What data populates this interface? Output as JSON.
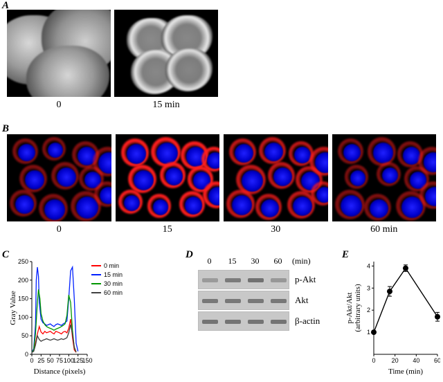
{
  "panelA": {
    "label": "A",
    "images": [
      {
        "caption": "0"
      },
      {
        "caption": "15 min"
      }
    ]
  },
  "panelB": {
    "label": "B",
    "images": [
      {
        "caption": "0",
        "red_intensity": 0.35
      },
      {
        "caption": "15",
        "red_intensity": 1.0
      },
      {
        "caption": "30",
        "red_intensity": 0.7
      },
      {
        "caption": "60 min",
        "red_intensity": 0.35
      }
    ],
    "nucleus_color": "#1818ff",
    "membrane_color": "#ff1e1e"
  },
  "panelC": {
    "label": "C",
    "type": "line",
    "xlabel": "Distance (pixels)",
    "ylabel": "Gray Value",
    "xlim": [
      0,
      150
    ],
    "ylim": [
      0,
      250
    ],
    "xticks": [
      0,
      25,
      50,
      75,
      100,
      125,
      150
    ],
    "yticks": [
      0,
      50,
      100,
      150,
      200,
      250
    ],
    "series": [
      {
        "name": "0 min",
        "color": "#ff0000",
        "x": [
          0,
          5,
          10,
          15,
          20,
          25,
          30,
          35,
          40,
          45,
          50,
          55,
          60,
          65,
          70,
          75,
          80,
          85,
          90,
          95,
          100,
          105,
          110,
          115,
          120
        ],
        "y": [
          5,
          10,
          30,
          55,
          75,
          60,
          55,
          62,
          58,
          60,
          62,
          58,
          55,
          62,
          60,
          58,
          55,
          60,
          62,
          58,
          70,
          95,
          45,
          12,
          5
        ]
      },
      {
        "name": "15 min",
        "color": "#0020ff",
        "x": [
          0,
          5,
          10,
          12,
          15,
          18,
          20,
          25,
          30,
          35,
          40,
          45,
          50,
          55,
          60,
          65,
          70,
          75,
          80,
          85,
          90,
          95,
          100,
          105,
          110,
          115,
          120,
          125
        ],
        "y": [
          5,
          15,
          80,
          200,
          235,
          210,
          140,
          95,
          85,
          82,
          78,
          80,
          82,
          78,
          75,
          80,
          82,
          80,
          78,
          82,
          85,
          90,
          150,
          225,
          235,
          150,
          30,
          8
        ]
      },
      {
        "name": "30 min",
        "color": "#009600",
        "x": [
          0,
          5,
          10,
          15,
          18,
          22,
          25,
          30,
          35,
          40,
          45,
          50,
          55,
          60,
          65,
          70,
          75,
          80,
          85,
          90,
          95,
          100,
          105,
          110,
          115,
          120
        ],
        "y": [
          5,
          12,
          55,
          140,
          175,
          150,
          110,
          90,
          80,
          75,
          72,
          70,
          68,
          65,
          68,
          70,
          72,
          75,
          78,
          82,
          105,
          160,
          140,
          65,
          18,
          6
        ]
      },
      {
        "name": "60 min",
        "color": "#404040",
        "x": [
          0,
          5,
          10,
          15,
          20,
          25,
          30,
          35,
          40,
          45,
          50,
          55,
          60,
          65,
          70,
          75,
          80,
          85,
          90,
          95,
          100,
          105,
          110,
          115,
          120
        ],
        "y": [
          5,
          8,
          25,
          50,
          40,
          35,
          38,
          40,
          42,
          40,
          38,
          40,
          42,
          40,
          38,
          40,
          42,
          40,
          42,
          45,
          58,
          80,
          55,
          20,
          6
        ]
      }
    ],
    "background_color": "#ffffff",
    "axis_color": "#000000",
    "label_fontsize": 11,
    "tick_fontsize": 9
  },
  "panelD": {
    "label": "D",
    "timepoints": [
      "0",
      "15",
      "30",
      "60"
    ],
    "time_unit": "(min)",
    "rows": [
      {
        "label": "p-Akt",
        "intensities": [
          0.25,
          0.7,
          0.85,
          0.3
        ]
      },
      {
        "label": "Akt",
        "intensities": [
          0.75,
          0.75,
          0.75,
          0.75
        ]
      },
      {
        "label": "β-actin",
        "intensities": [
          0.8,
          0.8,
          0.8,
          0.8
        ]
      }
    ],
    "blot_bg": "#c8c8c8",
    "band_color": "#555555"
  },
  "panelE": {
    "label": "E",
    "type": "line",
    "xlabel": "Time (min)",
    "ylabel_line1": "p-Akt/Akt",
    "ylabel_line2": "(arbitrary units)",
    "xlim": [
      0,
      60
    ],
    "ylim": [
      0,
      4.2
    ],
    "xticks": [
      0,
      20,
      40,
      60
    ],
    "yticks": [
      1,
      2,
      3,
      4
    ],
    "points": [
      {
        "x": 0,
        "y": 1.0,
        "err": 0.0
      },
      {
        "x": 15,
        "y": 2.85,
        "err": 0.22
      },
      {
        "x": 30,
        "y": 3.9,
        "err": 0.15
      },
      {
        "x": 60,
        "y": 1.7,
        "err": 0.2
      }
    ],
    "line_color": "#000000",
    "marker_fill": "#000000",
    "marker_size": 4,
    "background_color": "#ffffff",
    "label_fontsize": 11,
    "tick_fontsize": 9
  }
}
